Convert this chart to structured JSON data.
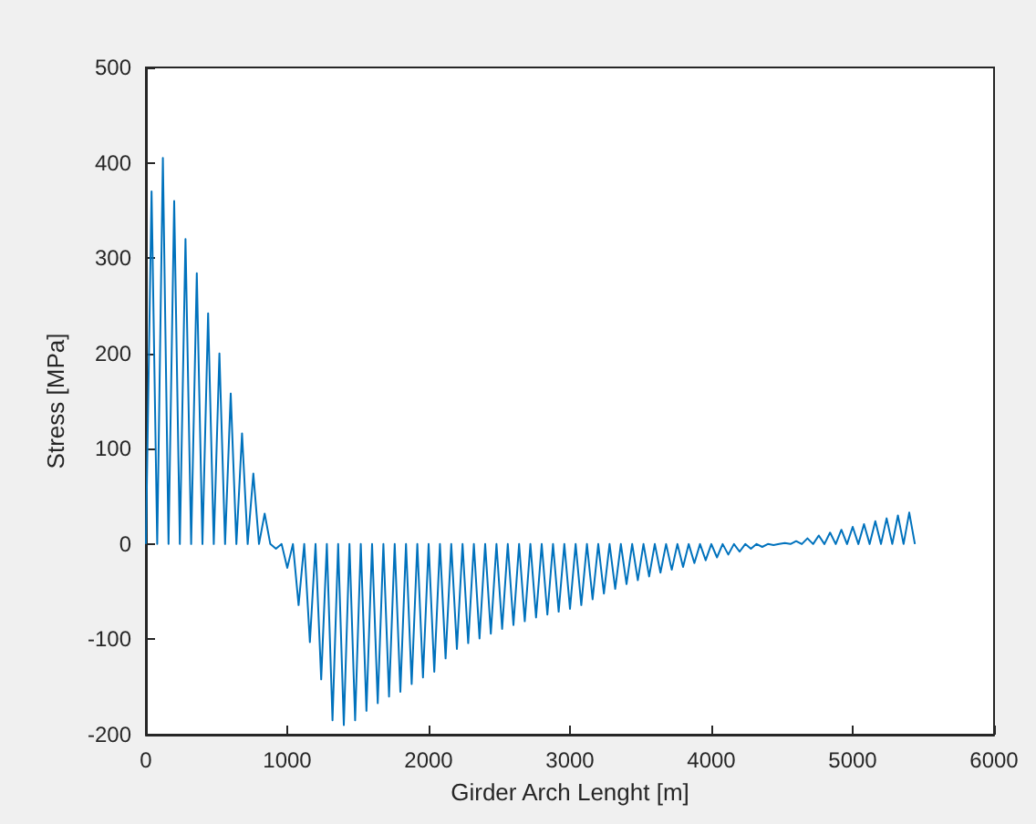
{
  "chart_data": {
    "type": "line",
    "xlabel": "Girder Arch Lenght [m]",
    "ylabel": "Stress [MPa]",
    "x": [
      0,
      40,
      80,
      120,
      160,
      200,
      240,
      280,
      320,
      360,
      400,
      440,
      480,
      520,
      560,
      600,
      640,
      680,
      720,
      760,
      800,
      840,
      880,
      920,
      960,
      1000,
      1040,
      1080,
      1120,
      1160,
      1200,
      1240,
      1280,
      1320,
      1360,
      1400,
      1440,
      1480,
      1520,
      1560,
      1600,
      1640,
      1680,
      1720,
      1760,
      1800,
      1840,
      1880,
      1920,
      1960,
      2000,
      2040,
      2080,
      2120,
      2160,
      2200,
      2240,
      2280,
      2320,
      2360,
      2400,
      2440,
      2480,
      2520,
      2560,
      2600,
      2640,
      2680,
      2720,
      2760,
      2800,
      2840,
      2880,
      2920,
      2960,
      3000,
      3040,
      3080,
      3120,
      3160,
      3200,
      3240,
      3280,
      3320,
      3360,
      3400,
      3440,
      3480,
      3520,
      3560,
      3600,
      3640,
      3680,
      3720,
      3760,
      3800,
      3840,
      3880,
      3920,
      3960,
      4000,
      4040,
      4080,
      4120,
      4160,
      4200,
      4240,
      4280,
      4320,
      4360,
      4400,
      4440,
      4480,
      4520,
      4560,
      4600,
      4640,
      4680,
      4720,
      4760,
      4800,
      4840,
      4880,
      4920,
      4960,
      5000,
      5040,
      5080,
      5120,
      5160,
      5200,
      5240,
      5280,
      5320,
      5360,
      5400,
      5440
    ],
    "series": [
      {
        "color": "#0072bd",
        "values": [
          0,
          370,
          0,
          405,
          0,
          360,
          0,
          320,
          0,
          284,
          0,
          242,
          0,
          200,
          0,
          158,
          0,
          116,
          0,
          74,
          0,
          32,
          0,
          -5,
          0,
          -25,
          0,
          -64,
          0,
          -103,
          0,
          -142,
          0,
          -185,
          0,
          -190,
          0,
          -185,
          0,
          -175,
          0,
          -167,
          0,
          -160,
          0,
          -155,
          0,
          -147,
          0,
          -140,
          0,
          -134,
          0,
          -120,
          0,
          -110,
          0,
          -104,
          0,
          -99,
          0,
          -94,
          0,
          -89,
          0,
          -85,
          0,
          -81,
          0,
          -77,
          0,
          -74,
          0,
          -71,
          0,
          -68,
          0,
          -64,
          0,
          -58,
          0,
          -52,
          0,
          -47,
          0,
          -42,
          0,
          -38,
          0,
          -34,
          0,
          -30,
          0,
          -27,
          0,
          -24,
          0,
          -20,
          0,
          -17,
          0,
          -14,
          0,
          -11,
          0,
          -8,
          0,
          -5,
          0,
          -3,
          0,
          -1,
          0,
          1,
          0,
          3,
          0,
          6,
          0,
          9,
          0,
          12,
          0,
          15,
          0,
          18,
          0,
          21,
          0,
          24,
          0,
          27,
          0,
          30,
          0,
          33,
          0
        ]
      }
    ],
    "xlim": [
      0,
      6000
    ],
    "xticks": [
      0,
      1000,
      2000,
      3000,
      4000,
      5000,
      6000
    ],
    "ylim": [
      -200,
      500
    ],
    "yticks": [
      -200,
      -100,
      0,
      100,
      200,
      300,
      400,
      500
    ],
    "marker": "none",
    "line_style": "solid"
  }
}
